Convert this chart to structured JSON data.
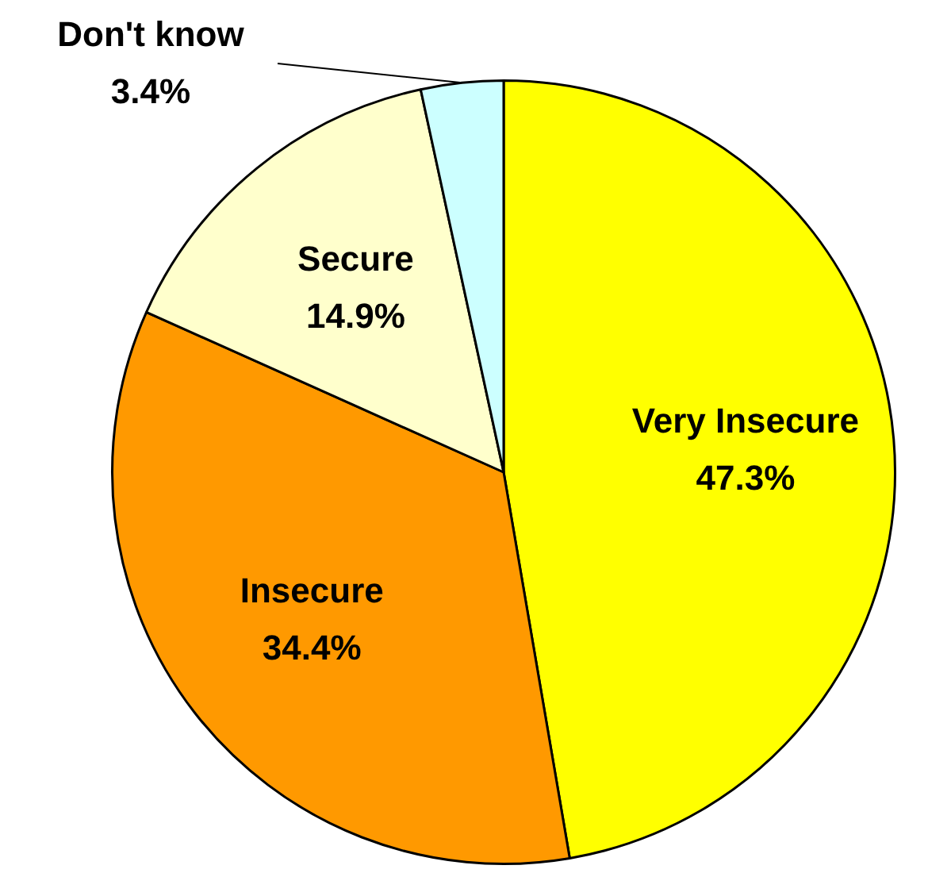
{
  "chart_data": {
    "type": "pie",
    "categories": [
      "Very Insecure",
      "Insecure",
      "Secure",
      "Don't know"
    ],
    "values": [
      47.3,
      34.4,
      14.9,
      3.4
    ],
    "colors": [
      "#ffff00",
      "#ff9900",
      "#ffffcc",
      "#ccffff"
    ],
    "value_labels": [
      "47.3%",
      "34.4%",
      "14.9%",
      "3.4%"
    ],
    "legend": false
  }
}
